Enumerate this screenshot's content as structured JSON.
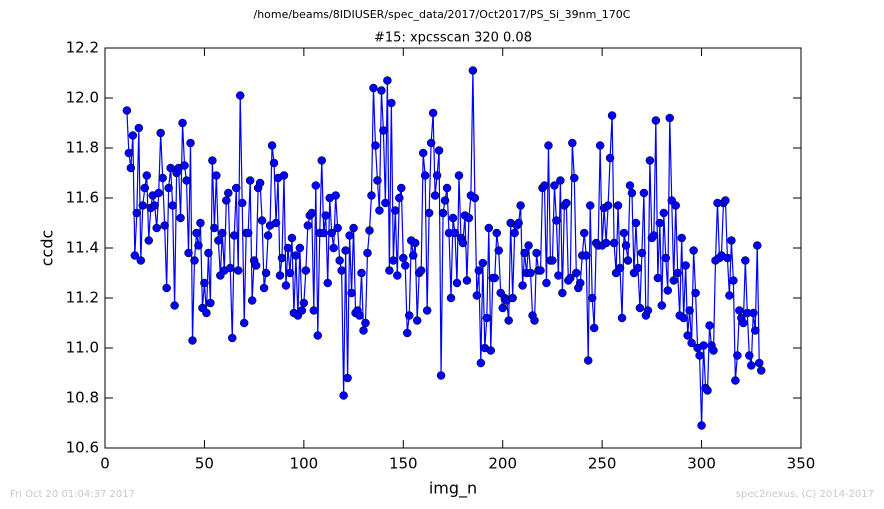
{
  "header": {
    "path": "/home/beams/8IDIUSER/spec_data/2017/Oct2017/PS_Si_39nm_170C"
  },
  "footer": {
    "timestamp": "Fri Oct 20 01:04:37 2017",
    "credit": "spec2nexus, (C) 2014-2017"
  },
  "chart_data": {
    "type": "line",
    "title": "#15: xpcsscan 320 0.08",
    "x_label": "img_n",
    "y_label": "ccdc",
    "xlim": [
      0,
      350
    ],
    "xticks": [
      0,
      50,
      100,
      150,
      200,
      250,
      300,
      350
    ],
    "ylim": [
      10.6,
      12.2
    ],
    "yticks": [
      10.6,
      10.8,
      {
        "value": 11.0,
        "label": "11.0"
      },
      11.2,
      11.4,
      11.6,
      11.8,
      {
        "value": 12.0,
        "label": "12.0"
      },
      12.2
    ],
    "grid": false,
    "series": [
      {
        "color": "#0000ff",
        "marker": "circle",
        "x": [
          11,
          12,
          13,
          14,
          15,
          16,
          17,
          18,
          19,
          20,
          21,
          22,
          23,
          24,
          25,
          26,
          27,
          28,
          29,
          30,
          31,
          32,
          33,
          34,
          35,
          36,
          37,
          38,
          39,
          40,
          41,
          42,
          43,
          44,
          45,
          46,
          47,
          48,
          49,
          50,
          51,
          52,
          53,
          54,
          55,
          56,
          57,
          58,
          59,
          60,
          61,
          62,
          63,
          64,
          65,
          66,
          67,
          68,
          69,
          70,
          71,
          72,
          73,
          74,
          75,
          76,
          77,
          78,
          79,
          80,
          81,
          82,
          83,
          84,
          85,
          86,
          87,
          88,
          89,
          90,
          91,
          92,
          93,
          94,
          95,
          96,
          97,
          98,
          99,
          100,
          101,
          102,
          103,
          104,
          105,
          106,
          107,
          108,
          109,
          110,
          111,
          112,
          113,
          114,
          115,
          116,
          117,
          118,
          119,
          120,
          121,
          122,
          123,
          124,
          125,
          126,
          127,
          128,
          129,
          130,
          131,
          132,
          133,
          134,
          135,
          136,
          137,
          138,
          139,
          140,
          141,
          142,
          143,
          144,
          145,
          146,
          147,
          148,
          149,
          150,
          151,
          152,
          153,
          154,
          155,
          156,
          157,
          158,
          159,
          160,
          161,
          162,
          163,
          164,
          165,
          166,
          167,
          168,
          169,
          170,
          171,
          172,
          173,
          174,
          175,
          176,
          177,
          178,
          179,
          180,
          181,
          182,
          183,
          184,
          185,
          186,
          187,
          188,
          189,
          190,
          191,
          192,
          193,
          194,
          195,
          196,
          197,
          198,
          199,
          200,
          201,
          202,
          203,
          204,
          205,
          206,
          207,
          208,
          209,
          210,
          211,
          212,
          213,
          214,
          215,
          216,
          217,
          218,
          219,
          220,
          221,
          222,
          223,
          224,
          225,
          226,
          227,
          228,
          229,
          230,
          231,
          232,
          233,
          234,
          235,
          236,
          237,
          238,
          239,
          240,
          241,
          242,
          243,
          244,
          245,
          246,
          247,
          248,
          249,
          250,
          251,
          252,
          253,
          254,
          255,
          256,
          257,
          258,
          259,
          260,
          261,
          262,
          263,
          264,
          265,
          266,
          267,
          268,
          269,
          270,
          271,
          272,
          273,
          274,
          275,
          276,
          277,
          278,
          279,
          280,
          281,
          282,
          283,
          284,
          285,
          286,
          287,
          288,
          289,
          290,
          291,
          292,
          293,
          294,
          295,
          296,
          297,
          298,
          299,
          300,
          301,
          302,
          303,
          304,
          305,
          306,
          307,
          308,
          309,
          310,
          311,
          312,
          313,
          314,
          315,
          316,
          317,
          318,
          319,
          320,
          321,
          322,
          323,
          324,
          325,
          326,
          327,
          328,
          329,
          330
        ],
        "values": [
          11.95,
          11.78,
          11.72,
          11.85,
          11.37,
          11.54,
          11.88,
          11.35,
          11.57,
          11.64,
          11.69,
          11.43,
          11.56,
          11.61,
          11.57,
          11.48,
          11.62,
          11.86,
          11.68,
          11.49,
          11.24,
          11.64,
          11.72,
          11.57,
          11.17,
          11.7,
          11.72,
          11.52,
          11.9,
          11.73,
          11.67,
          11.38,
          11.82,
          11.03,
          11.35,
          11.46,
          11.41,
          11.5,
          11.16,
          11.26,
          11.14,
          11.38,
          11.18,
          11.75,
          11.48,
          11.69,
          11.43,
          11.29,
          11.46,
          11.31,
          11.59,
          11.62,
          11.32,
          11.04,
          11.45,
          11.64,
          11.31,
          12.01,
          11.58,
          11.1,
          11.46,
          11.46,
          11.67,
          11.19,
          11.35,
          11.33,
          11.64,
          11.66,
          11.51,
          11.24,
          11.3,
          11.45,
          11.49,
          11.81,
          11.74,
          11.5,
          11.68,
          11.29,
          11.36,
          11.69,
          11.25,
          11.4,
          11.3,
          11.44,
          11.14,
          11.37,
          11.13,
          11.4,
          11.15,
          11.18,
          11.31,
          11.49,
          11.53,
          11.54,
          11.15,
          11.65,
          11.05,
          11.46,
          11.75,
          11.46,
          11.53,
          11.26,
          11.6,
          11.46,
          11.4,
          11.61,
          11.48,
          11.35,
          11.31,
          10.81,
          11.39,
          10.88,
          11.45,
          11.22,
          11.48,
          11.14,
          11.15,
          11.13,
          11.3,
          11.07,
          11.1,
          11.38,
          11.47,
          11.61,
          12.04,
          11.81,
          11.67,
          11.55,
          12.03,
          11.87,
          11.58,
          12.07,
          11.31,
          11.98,
          11.35,
          11.55,
          11.29,
          11.6,
          11.64,
          11.36,
          11.33,
          11.06,
          11.13,
          11.43,
          11.37,
          11.42,
          11.11,
          11.3,
          11.31,
          11.78,
          11.69,
          11.15,
          11.54,
          11.82,
          11.94,
          11.61,
          11.69,
          11.79,
          10.89,
          11.54,
          11.59,
          11.64,
          11.46,
          11.2,
          11.52,
          11.46,
          11.26,
          11.69,
          11.44,
          11.42,
          11.53,
          11.27,
          11.52,
          11.61,
          12.11,
          11.6,
          11.21,
          11.31,
          10.94,
          11.34,
          11.0,
          11.12,
          11.48,
          10.99,
          11.28,
          11.28,
          11.46,
          11.39,
          11.22,
          11.16,
          11.2,
          11.19,
          11.11,
          11.5,
          11.2,
          11.46,
          11.49,
          11.5,
          11.57,
          11.25,
          11.38,
          11.3,
          11.41,
          11.3,
          11.13,
          11.11,
          11.38,
          11.31,
          11.31,
          11.64,
          11.65,
          11.26,
          11.81,
          11.35,
          11.35,
          11.65,
          11.51,
          11.29,
          11.67,
          11.22,
          11.57,
          11.58,
          11.27,
          11.28,
          11.82,
          11.68,
          11.3,
          11.24,
          11.26,
          11.37,
          11.46,
          11.37,
          10.95,
          11.57,
          11.2,
          11.08,
          11.42,
          11.41,
          11.81,
          11.41,
          11.56,
          11.42,
          11.57,
          11.76,
          11.93,
          11.42,
          11.3,
          11.57,
          11.32,
          11.12,
          11.46,
          11.41,
          11.35,
          11.65,
          11.62,
          11.3,
          11.5,
          11.32,
          11.16,
          11.38,
          11.62,
          11.13,
          11.15,
          11.75,
          11.44,
          11.45,
          11.91,
          11.28,
          11.5,
          11.17,
          11.54,
          11.36,
          11.23,
          11.92,
          11.59,
          11.27,
          11.57,
          11.3,
          11.13,
          11.44,
          11.12,
          11.33,
          11.05,
          11.15,
          11.02,
          11.39,
          11.22,
          11.0,
          10.97,
          10.69,
          11.01,
          10.84,
          10.83,
          11.09,
          11.01,
          10.99,
          11.35,
          11.58,
          11.36,
          11.37,
          11.58,
          11.59,
          11.36,
          11.21,
          11.43,
          11.27,
          10.87,
          10.97,
          11.15,
          11.12,
          11.1,
          11.35,
          11.14,
          10.97,
          10.93,
          11.14,
          11.07,
          11.41,
          10.94,
          10.91
        ]
      }
    ]
  }
}
